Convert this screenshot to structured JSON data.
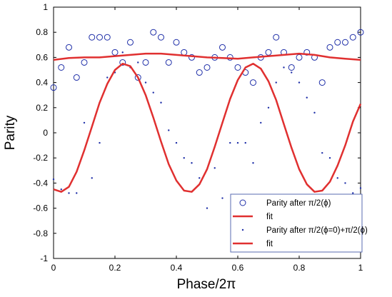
{
  "chart_data": {
    "type": "scatter",
    "xlabel": "Phase/2π",
    "ylabel": "Parity",
    "xlim": [
      0,
      1
    ],
    "ylim": [
      -1,
      1
    ],
    "xticks": [
      "0",
      "0.2",
      "0.4",
      "0.6",
      "0.8",
      "1"
    ],
    "yticks": [
      "1",
      "0.8",
      "0.6",
      "0.4",
      "0.2",
      "0",
      "-0.2",
      "-0.4",
      "-0.6",
      "-0.8",
      "-1"
    ],
    "legend_position": "bottom-right",
    "grid": false,
    "colors": {
      "series": "#1f2fa8",
      "fit": "#e03030",
      "axis": "#000000"
    },
    "series": [
      {
        "name": "Parity after π/2(ϕ)",
        "style": "open-circle",
        "x": [
          0.0,
          0.025,
          0.05,
          0.075,
          0.1,
          0.125,
          0.15,
          0.175,
          0.2,
          0.225,
          0.25,
          0.275,
          0.3,
          0.325,
          0.35,
          0.375,
          0.4,
          0.425,
          0.45,
          0.475,
          0.5,
          0.525,
          0.55,
          0.575,
          0.6,
          0.625,
          0.65,
          0.675,
          0.7,
          0.725,
          0.75,
          0.775,
          0.8,
          0.825,
          0.85,
          0.875,
          0.9,
          0.925,
          0.95,
          0.975,
          1.0
        ],
        "y": [
          0.36,
          0.52,
          0.68,
          0.44,
          0.56,
          0.76,
          0.76,
          0.76,
          0.64,
          0.56,
          0.72,
          0.44,
          0.56,
          0.8,
          0.76,
          0.56,
          0.72,
          0.64,
          0.6,
          0.48,
          0.52,
          0.6,
          0.68,
          0.6,
          0.52,
          0.48,
          0.4,
          0.6,
          0.64,
          0.76,
          0.64,
          0.52,
          0.6,
          0.64,
          0.6,
          0.4,
          0.68,
          0.72,
          0.72,
          0.76,
          0.8
        ]
      },
      {
        "name": "fit",
        "style": "line",
        "x": [
          0.0,
          0.05,
          0.1,
          0.15,
          0.2,
          0.25,
          0.3,
          0.35,
          0.4,
          0.45,
          0.5,
          0.55,
          0.6,
          0.65,
          0.7,
          0.75,
          0.8,
          0.85,
          0.9,
          0.95,
          1.0
        ],
        "y": [
          0.58,
          0.595,
          0.6,
          0.6,
          0.61,
          0.62,
          0.63,
          0.63,
          0.62,
          0.61,
          0.6,
          0.595,
          0.59,
          0.6,
          0.61,
          0.62,
          0.63,
          0.62,
          0.6,
          0.59,
          0.58
        ]
      },
      {
        "name": "Parity after π/2(ϕ=0)+π/2(ϕ)",
        "style": "dot",
        "x": [
          0.0,
          0.025,
          0.05,
          0.075,
          0.1,
          0.125,
          0.15,
          0.175,
          0.2,
          0.225,
          0.25,
          0.275,
          0.3,
          0.325,
          0.35,
          0.375,
          0.4,
          0.425,
          0.45,
          0.475,
          0.5,
          0.525,
          0.55,
          0.575,
          0.6,
          0.625,
          0.65,
          0.675,
          0.7,
          0.725,
          0.75,
          0.775,
          0.8,
          0.825,
          0.85,
          0.875,
          0.9,
          0.925,
          0.95,
          0.975,
          1.0
        ],
        "y": [
          -0.37,
          -0.45,
          -0.48,
          -0.48,
          0.08,
          -0.36,
          -0.08,
          0.44,
          0.48,
          0.64,
          0.52,
          0.56,
          0.4,
          0.32,
          0.24,
          0.02,
          -0.08,
          -0.2,
          -0.24,
          -0.36,
          -0.6,
          -0.28,
          -0.52,
          -0.08,
          -0.08,
          -0.08,
          -0.24,
          0.08,
          0.2,
          0.4,
          0.52,
          0.48,
          0.4,
          0.28,
          0.16,
          -0.16,
          -0.2,
          -0.36,
          -0.4,
          -0.48,
          -0.44
        ]
      },
      {
        "name": "fit",
        "style": "line",
        "x": [
          0.0,
          0.025,
          0.05,
          0.075,
          0.1,
          0.125,
          0.15,
          0.175,
          0.2,
          0.225,
          0.25,
          0.275,
          0.3,
          0.325,
          0.35,
          0.375,
          0.4,
          0.425,
          0.45,
          0.475,
          0.5,
          0.525,
          0.55,
          0.575,
          0.6,
          0.625,
          0.65,
          0.675,
          0.7,
          0.725,
          0.75,
          0.775,
          0.8,
          0.825,
          0.85,
          0.875,
          0.9,
          0.925,
          0.95,
          0.975,
          1.0
        ],
        "y": [
          -0.45,
          -0.47,
          -0.43,
          -0.31,
          -0.14,
          0.05,
          0.24,
          0.39,
          0.5,
          0.55,
          0.53,
          0.44,
          0.3,
          0.12,
          -0.07,
          -0.25,
          -0.38,
          -0.46,
          -0.47,
          -0.41,
          -0.29,
          -0.11,
          0.08,
          0.27,
          0.42,
          0.52,
          0.55,
          0.51,
          0.41,
          0.26,
          0.07,
          -0.12,
          -0.29,
          -0.41,
          -0.47,
          -0.46,
          -0.39,
          -0.26,
          -0.1,
          0.09,
          0.23
        ]
      }
    ]
  }
}
